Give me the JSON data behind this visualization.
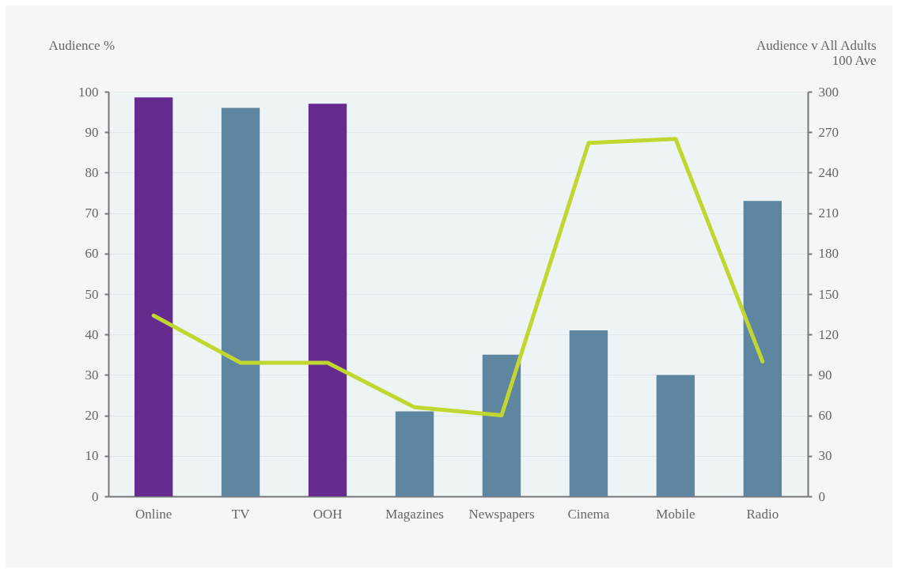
{
  "chart_data": {
    "type": "bar",
    "ylabel": "Audience %",
    "y2label": "Audience v All Adults\n100 Ave",
    "categories": [
      "Online",
      "TV",
      "OOH",
      "Magazines",
      "Newspapers",
      "Cinema",
      "Mobile",
      "Radio"
    ],
    "series": [
      {
        "colors": [
          "#652b8f",
          "#5e86a0",
          "#652b8f",
          "#5e86a0",
          "#5e86a0",
          "#5e86a0",
          "#5e86a0",
          "#5e86a0"
        ],
        "values": [
          98.6,
          96,
          97,
          21,
          35,
          41,
          30,
          73
        ]
      },
      {
        "type": "line",
        "axis": "y2",
        "color": "#c0d72f",
        "values": [
          134,
          99,
          99,
          66,
          60,
          262,
          265,
          100
        ]
      }
    ],
    "ylim": [
      0,
      100
    ],
    "yticks": [
      0,
      10,
      20,
      30,
      40,
      50,
      60,
      70,
      80,
      90,
      100
    ],
    "y2lim": [
      0,
      300
    ],
    "y2ticks": [
      0,
      30,
      60,
      90,
      120,
      150,
      180,
      210,
      240,
      270,
      300
    ],
    "grid": "y",
    "marker": "none",
    "line_style": "solid"
  }
}
